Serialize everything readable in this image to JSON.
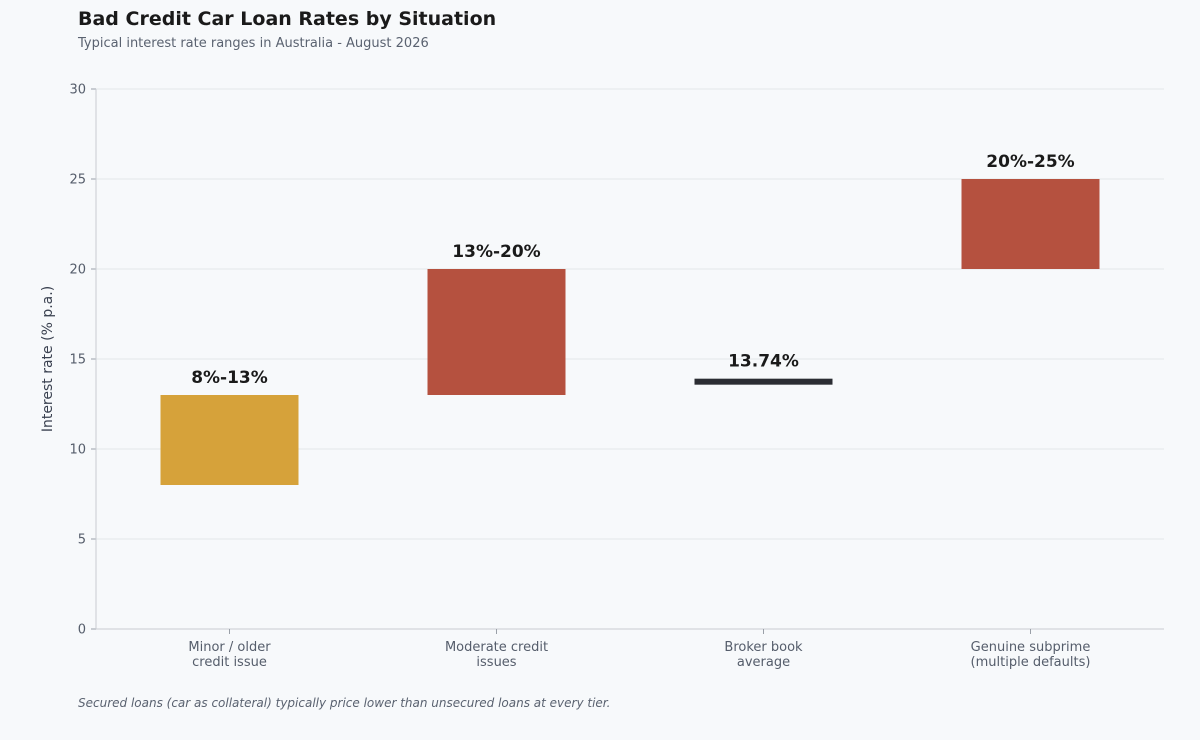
{
  "chart_data": {
    "type": "bar",
    "title": "Bad Credit Car Loan Rates by Situation",
    "subtitle": "Typical interest rate ranges in Australia - August 2026",
    "ylabel": "Interest rate (% p.a.)",
    "xlabel": "",
    "ylim": [
      0,
      30
    ],
    "yticks": [
      0,
      5,
      10,
      15,
      20,
      25,
      30
    ],
    "grid": true,
    "categories": [
      [
        "Minor / older",
        "credit issue"
      ],
      [
        "Moderate credit",
        "issues"
      ],
      [
        "Broker book",
        "average"
      ],
      [
        "Genuine subprime",
        "(multiple defaults)"
      ]
    ],
    "bars": [
      {
        "low": 8,
        "high": 13,
        "label": "8%-13%",
        "color": "#d6a23a"
      },
      {
        "low": 13,
        "high": 20,
        "label": "13%-20%",
        "color": "#b5513f"
      },
      {
        "low": 13.74,
        "high": 13.74,
        "label": "13.74%",
        "color": "#2b2d33"
      },
      {
        "low": 20,
        "high": 25,
        "label": "20%-25%",
        "color": "#b5513f"
      }
    ]
  },
  "footnote": "Secured loans (car as collateral) typically price lower than unsecured loans at every tier."
}
